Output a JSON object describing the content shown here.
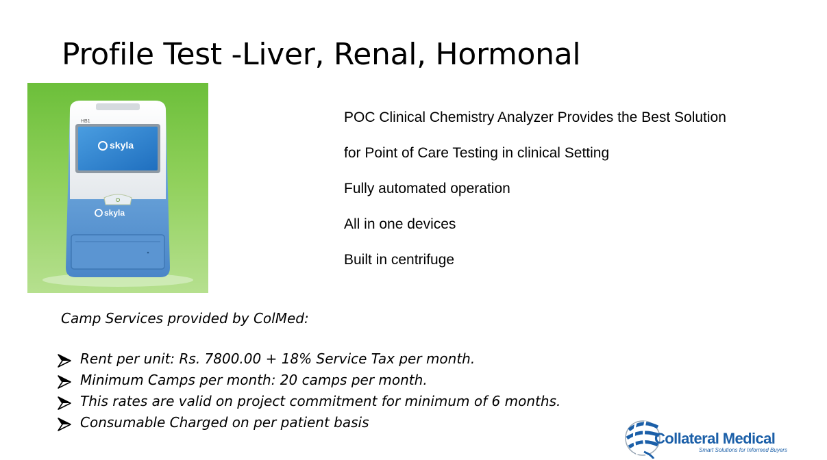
{
  "title": "Profile Test -Liver, Renal, Hormonal",
  "product": {
    "brand_screen": "skyla",
    "model_label": "HB1",
    "brand_body": "skyla"
  },
  "features": [
    "POC Clinical Chemistry Analyzer Provides the Best Solution",
    "for Point of Care Testing in clinical Setting",
    "Fully automated operation",
    "All in one devices",
    "Built in centrifuge"
  ],
  "camp": {
    "heading": "Camp Services provided by ColMed:",
    "items": [
      "Rent per unit: Rs. 7800.00 + 18% Service Tax per month.",
      "Minimum Camps per month: 20 camps per month.",
      "This rates are valid on project commitment for minimum of 6 months.",
      "Consumable Charged on per patient basis"
    ]
  },
  "logo": {
    "name": "Collateral Medical",
    "tagline": "Smart Solutions for Informed Buyers",
    "color": "#1b5fa8"
  }
}
